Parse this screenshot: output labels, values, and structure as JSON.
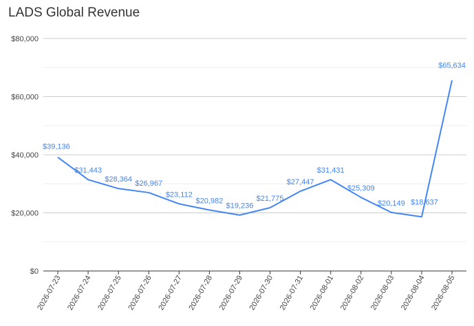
{
  "chart_data": {
    "type": "line",
    "title": "LADS Global Revenue",
    "x": [
      "2026-07-23",
      "2026-07-24",
      "2026-07-25",
      "2026-07-26",
      "2026-07-27",
      "2026-07-28",
      "2026-07-29",
      "2026-07-30",
      "2026-07-31",
      "2026-08-01",
      "2026-08-02",
      "2026-08-03",
      "2026-08-04",
      "2026-08-05"
    ],
    "values": [
      39136,
      31443,
      28364,
      26967,
      23112,
      20982,
      19236,
      21775,
      27447,
      31431,
      25309,
      20149,
      18637,
      65634
    ],
    "data_labels": [
      "$39,136",
      "$31,443",
      "$28,364",
      "$26,967",
      "$23,112",
      "$20,982",
      "$19,236",
      "$21,775",
      "$27,447",
      "$31,431",
      "$25,309",
      "$20,149",
      "$18,637",
      "$65,634"
    ],
    "y_ticks": [
      0,
      20000,
      40000,
      60000,
      80000
    ],
    "y_tick_labels": [
      "$0",
      "$20,000",
      "$40,000",
      "$60,000",
      "$80,000"
    ],
    "ylim": [
      0,
      80000
    ],
    "grid": true,
    "line_color": "#4285f4"
  }
}
